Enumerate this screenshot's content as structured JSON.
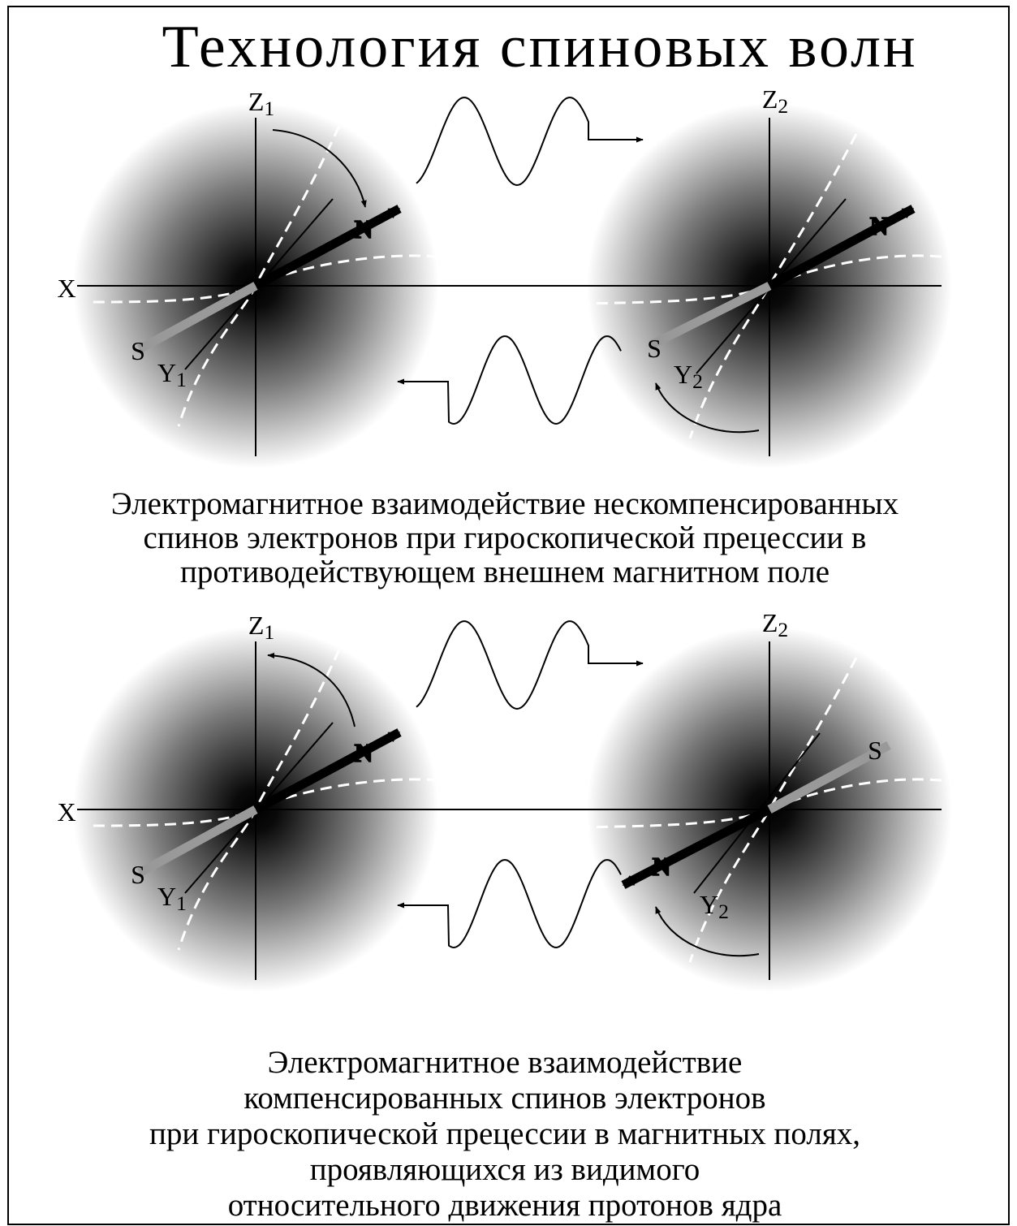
{
  "title": "Технология спиновых волн",
  "diagrams": [
    {
      "labels": {
        "x": "X",
        "z1": [
          "Z",
          "1"
        ],
        "z2": [
          "Z",
          "2"
        ],
        "y1": [
          "Y",
          "1"
        ],
        "y2": [
          "Y",
          "2"
        ],
        "n_left": "N",
        "s_left": "S",
        "n_right": "N",
        "s_right": "S"
      },
      "caption": [
        "Электромагнитное взаимодействие нескомпенсированных",
        "спинов электронов при  гироскопической прецессии в",
        "противодействующем внешнем магнитном поле"
      ]
    },
    {
      "labels": {
        "x": "X",
        "z1": [
          "Z",
          "1"
        ],
        "z2": [
          "Z",
          "2"
        ],
        "y1": [
          "Y",
          "1"
        ],
        "y2": [
          "Y",
          "2"
        ],
        "n_left": "N",
        "s_left": "S",
        "n_right": "N",
        "s_right": "S"
      },
      "caption": [
        "Электромагнитное взаимодействие",
        "компенсированных спинов электронов",
        "при гироскопической прецессии в магнитных полях,",
        "проявляющихся из видимого",
        "относительного движения протонов ядра"
      ]
    }
  ]
}
